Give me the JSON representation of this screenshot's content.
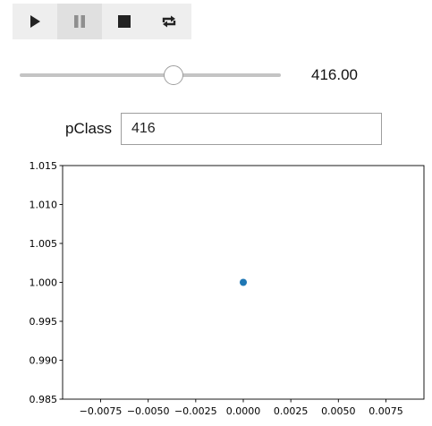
{
  "toolbar": {
    "buttons": [
      {
        "name": "play-button",
        "icon": "play-icon"
      },
      {
        "name": "pause-button",
        "icon": "pause-icon"
      },
      {
        "name": "stop-button",
        "icon": "stop-icon"
      },
      {
        "name": "repeat-button",
        "icon": "repeat-icon"
      }
    ]
  },
  "slider": {
    "readout": "416.00",
    "fraction": 0.59
  },
  "field": {
    "label": "pClass",
    "value": "416"
  },
  "chart_data": {
    "type": "scatter",
    "x": [
      0.0
    ],
    "y": [
      1.0
    ],
    "marker_color": "#1f77b4",
    "xlim": [
      -0.0095,
      0.0095
    ],
    "ylim": [
      0.985,
      1.015
    ],
    "xticks": [
      -0.0075,
      -0.005,
      -0.0025,
      0.0,
      0.0025,
      0.005,
      0.0075
    ],
    "xtick_labels": [
      "−0.0075",
      "−0.0050",
      "−0.0025",
      "0.0000",
      "0.0025",
      "0.0050",
      "0.0075"
    ],
    "yticks": [
      0.985,
      0.99,
      0.995,
      1.0,
      1.005,
      1.01,
      1.015
    ],
    "ytick_labels": [
      "0.985",
      "0.990",
      "0.995",
      "1.000",
      "1.005",
      "1.010",
      "1.015"
    ],
    "grid": false,
    "title": "",
    "xlabel": "",
    "ylabel": ""
  }
}
